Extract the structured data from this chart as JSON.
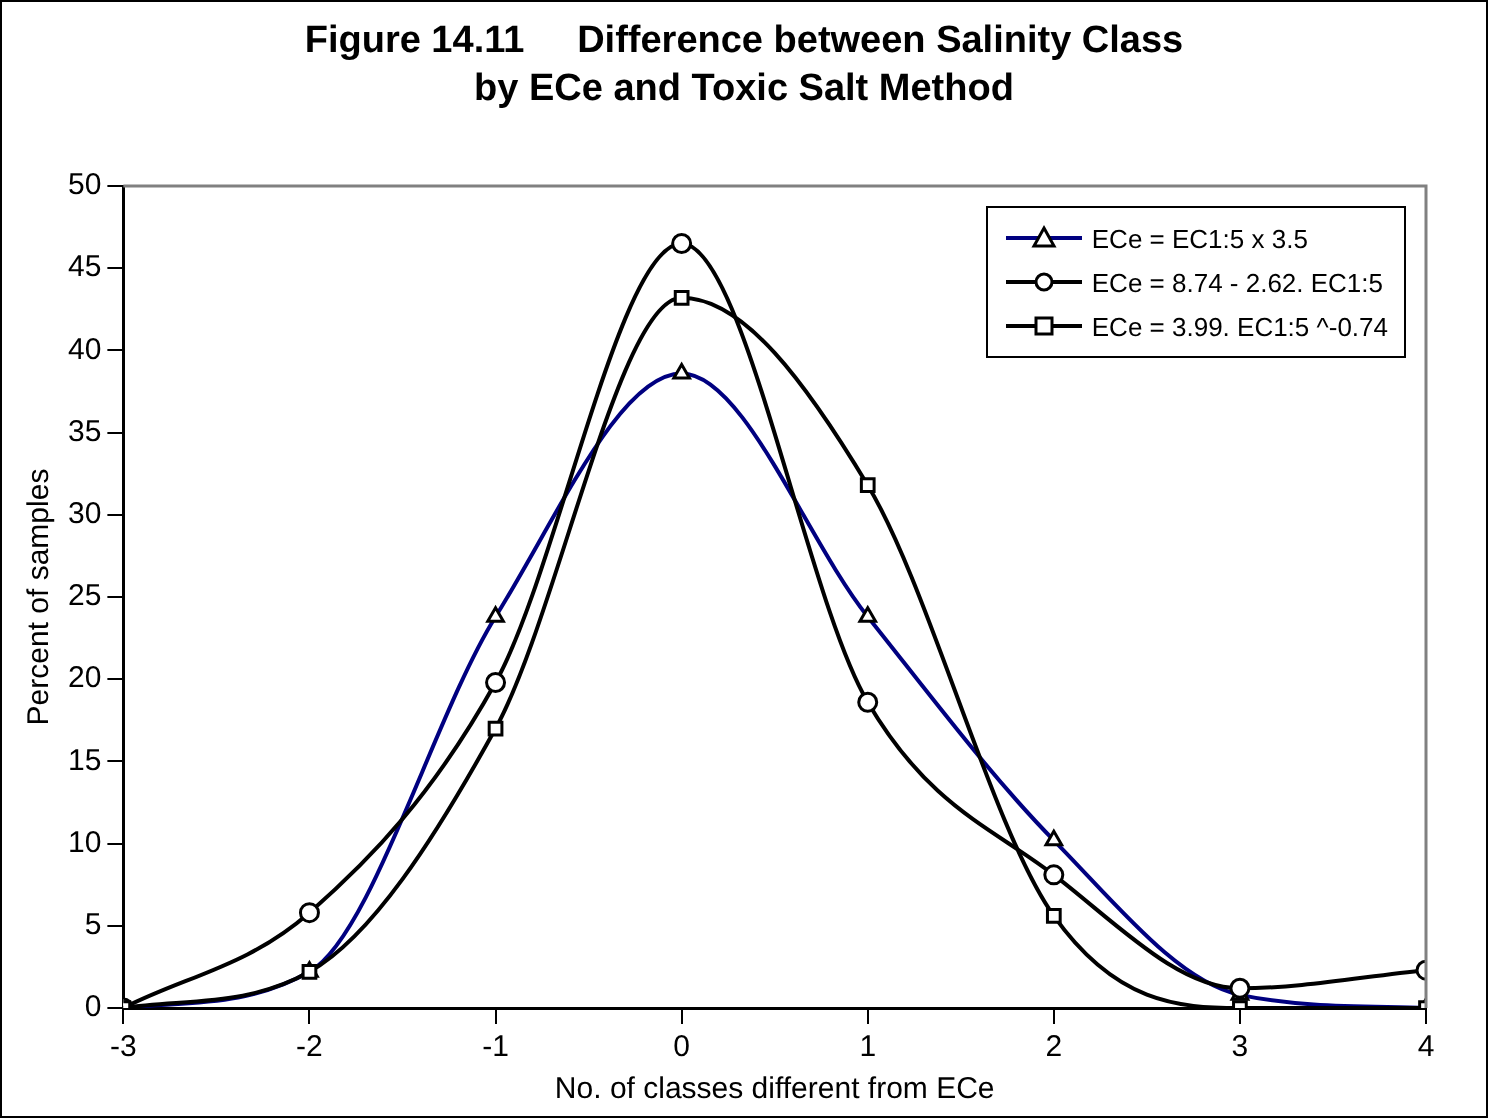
{
  "chart_data": {
    "type": "line",
    "title": "Figure 14.11     Difference between Salinity Class\nby ECe and Toxic Salt Method",
    "xlabel": "No. of classes different from ECe",
    "ylabel": "Percent of samples",
    "x": [
      -3,
      -2,
      -1,
      0,
      1,
      2,
      3,
      4
    ],
    "series": [
      {
        "name": "ECe =  EC1:5 x 3.5",
        "color": "#000080",
        "marker": "triangle",
        "values": [
          0,
          2.2,
          23.8,
          38.6,
          23.8,
          10.2,
          0.8,
          0
        ]
      },
      {
        "name": "ECe = 8.74 - 2.62. EC1:5",
        "color": "#000000",
        "marker": "circle",
        "values": [
          0,
          5.8,
          19.8,
          46.5,
          18.6,
          8.1,
          1.2,
          2.3
        ]
      },
      {
        "name": "ECe = 3.99. EC1:5 ^-0.74",
        "color": "#000000",
        "marker": "square",
        "values": [
          0,
          2.2,
          17,
          43.2,
          31.8,
          5.6,
          0,
          0
        ]
      }
    ],
    "xlim": [
      -3,
      4
    ],
    "xticks": [
      -3,
      -2,
      -1,
      0,
      1,
      2,
      3,
      4
    ],
    "ylim": [
      0,
      50
    ],
    "yticks": [
      0,
      5,
      10,
      15,
      20,
      25,
      30,
      35,
      40,
      45,
      50
    ],
    "grid": false,
    "legend": "top right",
    "line_style": "solid"
  }
}
